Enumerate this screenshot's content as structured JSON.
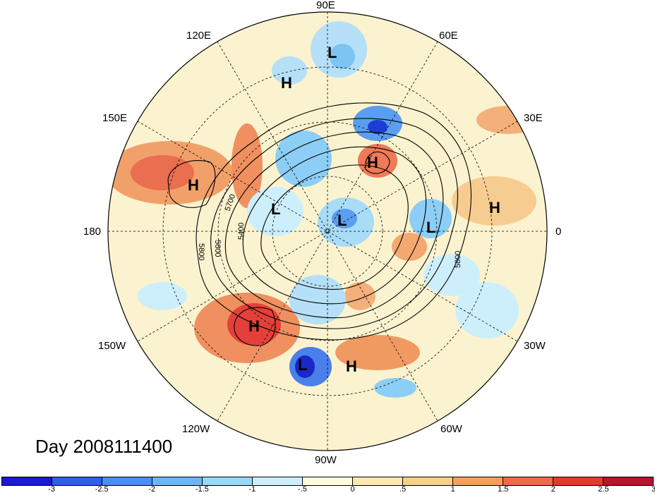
{
  "title": "Day 2008111400",
  "longitude_labels": {
    "n90e": "90E",
    "n120e": "120E",
    "n60e": "60E",
    "n150e": "150E",
    "n30e": "30E",
    "n180": "180",
    "n0": "0",
    "n150w": "150W",
    "n30w": "30W",
    "n120w": "120W",
    "n60w": "60W",
    "n90w": "90W"
  },
  "contour_labels": [
    "5700",
    "5600",
    "5400",
    "5800",
    "5800"
  ],
  "pressure_centers": [
    {
      "label": "L"
    },
    {
      "label": "H"
    },
    {
      "label": "H"
    },
    {
      "label": "H"
    },
    {
      "label": "L"
    },
    {
      "label": "L"
    },
    {
      "label": "L"
    },
    {
      "label": "H"
    },
    {
      "label": "H"
    },
    {
      "label": "L"
    },
    {
      "label": "H"
    }
  ],
  "colorbar": {
    "colors": [
      "#1a1ad6",
      "#2f5fe8",
      "#4a8ef0",
      "#6db6f5",
      "#98d8f8",
      "#cdeffc",
      "#fffbdc",
      "#fde9b0",
      "#f9d08a",
      "#f5a060",
      "#ee6a4a",
      "#e23a2e",
      "#b8142a"
    ],
    "ticks": [
      "-3",
      "-2.5",
      "-2",
      "-1.5",
      "-1",
      "-.5",
      "0",
      ".5",
      "1",
      "1.5",
      "2",
      "2.5",
      "3"
    ]
  }
}
